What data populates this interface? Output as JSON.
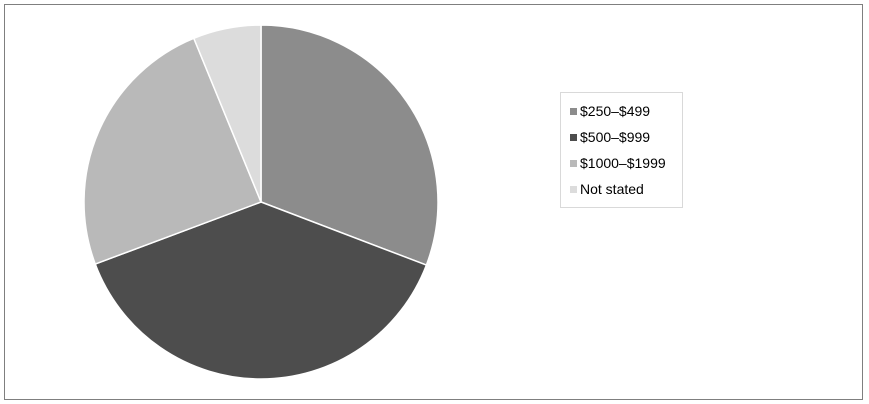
{
  "chart_data": {
    "type": "pie",
    "title": "",
    "categories": [
      "$250–$499",
      "$500–$999",
      "$1000–$1999",
      "Not stated"
    ],
    "values": [
      30.8,
      38.5,
      24.5,
      6.2
    ],
    "colors": [
      "#8c8c8c",
      "#4d4d4d",
      "#b9b9b9",
      "#dcdcdc"
    ],
    "start_angle_deg": 0,
    "direction": "clockwise",
    "legend_position": "right"
  }
}
